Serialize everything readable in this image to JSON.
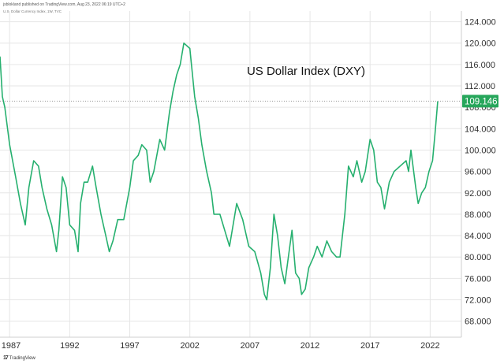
{
  "header": {
    "publisher": "jsblokland published on TradingView.com, Aug 23, 2022 06:19 UTC+2",
    "symbol": "U.S. Dollar Currency Index, 1W, TVC"
  },
  "footer": {
    "logo_mark": "17",
    "brand": "TradingView"
  },
  "colors": {
    "line": "#26b06f",
    "grid": "#e6e6e6",
    "axis_text": "#333333",
    "last_bg": "#26a65b"
  },
  "chart_data": {
    "type": "line",
    "title": "US Dollar Index (DXY)",
    "xlabel": "",
    "ylabel": "",
    "xlim": [
      1986.2,
      2024.6
    ],
    "ylim": [
      65.0,
      126.0
    ],
    "y_ticks": [
      68,
      72,
      76,
      80,
      84,
      88,
      92,
      96,
      100,
      104,
      108,
      112,
      116,
      120,
      124
    ],
    "y_tick_labels": [
      "68.000",
      "72.000",
      "76.000",
      "80.000",
      "84.000",
      "88.000",
      "92.000",
      "96.000",
      "100.000",
      "104.000",
      "108.000",
      "112.000",
      "116.000",
      "120.000",
      "124.000"
    ],
    "x_ticks": [
      1987,
      1992,
      1997,
      2002,
      2007,
      2012,
      2017,
      2022
    ],
    "x_tick_labels": [
      "1987",
      "1992",
      "1997",
      "2002",
      "2007",
      "2012",
      "2017",
      "2022"
    ],
    "last_value": 109.146,
    "last_label": "109.146",
    "grid": true,
    "series": [
      {
        "name": "DXY",
        "x": [
          1986.2,
          1986.4,
          1986.6,
          1987.0,
          1987.5,
          1987.9,
          1988.3,
          1988.6,
          1989.0,
          1989.4,
          1989.7,
          1990.1,
          1990.5,
          1990.9,
          1991.1,
          1991.4,
          1991.7,
          1992.0,
          1992.4,
          1992.7,
          1992.9,
          1993.2,
          1993.5,
          1993.9,
          1994.2,
          1994.6,
          1995.0,
          1995.3,
          1995.6,
          1996.0,
          1996.5,
          1997.0,
          1997.3,
          1997.7,
          1998.0,
          1998.4,
          1998.7,
          1999.0,
          1999.5,
          1999.9,
          2000.3,
          2000.6,
          2000.9,
          2001.2,
          2001.5,
          2002.0,
          2002.4,
          2002.7,
          2003.0,
          2003.4,
          2003.8,
          2004.0,
          2004.5,
          2004.9,
          2005.3,
          2005.9,
          2006.4,
          2006.9,
          2007.4,
          2007.9,
          2008.2,
          2008.4,
          2008.7,
          2009.0,
          2009.3,
          2009.6,
          2009.9,
          2010.2,
          2010.5,
          2010.8,
          2011.1,
          2011.3,
          2011.6,
          2011.9,
          2012.3,
          2012.6,
          2013.0,
          2013.4,
          2013.8,
          2014.2,
          2014.5,
          2014.9,
          2015.2,
          2015.6,
          2015.9,
          2016.3,
          2016.6,
          2017.0,
          2017.3,
          2017.6,
          2017.9,
          2018.2,
          2018.6,
          2019.0,
          2019.5,
          2020.0,
          2020.2,
          2020.4,
          2020.8,
          2021.0,
          2021.3,
          2021.6,
          2021.9,
          2022.2,
          2022.4,
          2022.63
        ],
        "values": [
          117.5,
          110.0,
          108.0,
          101.0,
          95.0,
          90.0,
          86.0,
          93.0,
          98.0,
          97.0,
          93.0,
          89.0,
          86.0,
          81.0,
          85.0,
          95.0,
          93.0,
          86.0,
          85.0,
          81.0,
          90.0,
          94.0,
          94.0,
          97.0,
          93.0,
          88.0,
          84.0,
          81.0,
          83.0,
          87.0,
          87.0,
          93.0,
          98.0,
          99.0,
          101.0,
          100.0,
          94.0,
          96.0,
          102.0,
          100.0,
          107.0,
          111.0,
          114.0,
          116.0,
          120.0,
          119.0,
          110.0,
          106.0,
          101.0,
          96.0,
          92.0,
          88.0,
          88.0,
          85.0,
          82.0,
          90.0,
          87.0,
          82.0,
          81.0,
          77.0,
          73.0,
          72.0,
          78.0,
          88.0,
          84.0,
          78.0,
          75.0,
          80.0,
          85.0,
          77.0,
          76.0,
          73.0,
          74.0,
          78.0,
          80.0,
          82.0,
          80.0,
          83.0,
          81.0,
          80.0,
          80.0,
          88.0,
          97.0,
          95.0,
          98.0,
          94.0,
          96.0,
          102.0,
          100.0,
          94.0,
          93.0,
          89.0,
          94.0,
          96.0,
          97.0,
          98.0,
          96.0,
          100.0,
          93.0,
          90.0,
          92.0,
          93.0,
          96.0,
          98.0,
          103.0,
          109.146
        ]
      }
    ]
  }
}
